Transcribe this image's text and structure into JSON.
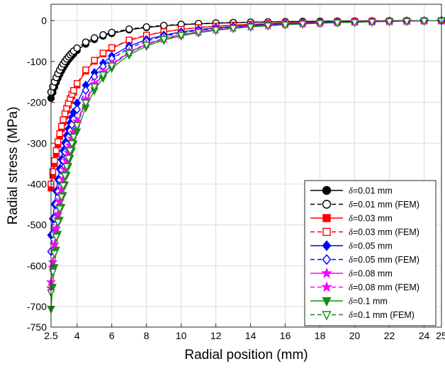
{
  "chart_data": {
    "type": "line",
    "title": "",
    "xlabel": "Radial position (mm)",
    "ylabel": "Radial stress (MPa)",
    "xlim": [
      2.5,
      25
    ],
    "ylim": [
      -750,
      40
    ],
    "xticks": [
      2.5,
      4,
      6,
      8,
      10,
      12,
      14,
      16,
      18,
      20,
      22,
      24,
      25
    ],
    "xtick_labels": [
      "2.5",
      "4",
      "6",
      "8",
      "10",
      "12",
      "14",
      "16",
      "18",
      "20",
      "22",
      "24",
      "25"
    ],
    "yticks": [
      0,
      -100,
      -200,
      -300,
      -400,
      -500,
      -600,
      -700,
      -750
    ],
    "ytick_labels": [
      "0",
      "-100",
      "-200",
      "-300",
      "-400",
      "-500",
      "-600",
      "-700",
      "-750"
    ],
    "grid": true,
    "legend_position": "bottom-right",
    "legend_delta_symbol": "δ",
    "series": [
      {
        "name": "=0.01 mm",
        "color": "#000000",
        "marker": "circle",
        "fill": "filled",
        "dash": "solid",
        "delta": 0.01,
        "fem": false
      },
      {
        "name": "=0.01 mm (FEM)",
        "color": "#000000",
        "marker": "circle",
        "fill": "open",
        "dash": "dashed",
        "delta": 0.01,
        "fem": true
      },
      {
        "name": "=0.03 mm",
        "color": "#ff0000",
        "marker": "square",
        "fill": "filled",
        "dash": "solid",
        "delta": 0.03,
        "fem": false
      },
      {
        "name": "=0.03 mm (FEM)",
        "color": "#ff0000",
        "marker": "square",
        "fill": "open",
        "dash": "dashed",
        "delta": 0.03,
        "fem": true
      },
      {
        "name": "=0.05 mm",
        "color": "#0000ff",
        "marker": "diamond",
        "fill": "filled",
        "dash": "solid",
        "delta": 0.05,
        "fem": false
      },
      {
        "name": "=0.05 mm (FEM)",
        "color": "#0000ff",
        "marker": "diamond",
        "fill": "open",
        "dash": "dashed",
        "delta": 0.05,
        "fem": true
      },
      {
        "name": "=0.08 mm",
        "color": "#ff00ff",
        "marker": "star",
        "fill": "filled",
        "dash": "solid",
        "delta": 0.08,
        "fem": false
      },
      {
        "name": "=0.08 mm (FEM)",
        "color": "#ff00ff",
        "marker": "star",
        "fill": "filled",
        "dash": "dashed",
        "delta": 0.08,
        "fem": true
      },
      {
        "name": "=0.1 mm",
        "color": "#1a8c1a",
        "marker": "triangle-down",
        "fill": "filled",
        "dash": "solid",
        "delta": 0.1,
        "fem": false
      },
      {
        "name": "=0.1 mm (FEM)",
        "color": "#1a8c1a",
        "marker": "triangle-down",
        "fill": "open",
        "dash": "dashed",
        "delta": 0.1,
        "fem": true
      }
    ],
    "data_x": [
      2.5,
      2.6,
      2.7,
      2.8,
      2.9,
      3.0,
      3.1,
      3.2,
      3.3,
      3.4,
      3.5,
      3.6,
      3.7,
      3.8,
      4.0,
      4.5,
      5.0,
      5.5,
      6.0,
      7.0,
      8.0,
      9.0,
      10.0,
      11.0,
      12.0,
      13.0,
      14.0,
      15.0,
      16.0,
      17.0,
      18.0,
      19.0,
      20.0,
      21.0,
      22.0,
      23.0,
      24.0,
      25.0
    ],
    "values_note_removed": true
  }
}
